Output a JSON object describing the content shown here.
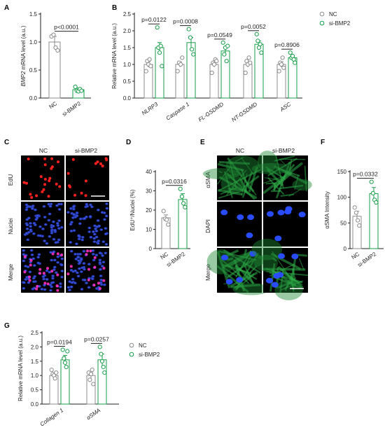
{
  "colors": {
    "nc": "#8c8c8c",
    "si": "#1a9e4a",
    "axis": "#222222"
  },
  "panels": {
    "A": "A",
    "B": "B",
    "C": "C",
    "D": "D",
    "E": "E",
    "F": "F",
    "G": "G"
  },
  "images": {
    "C": {
      "cols": [
        "NC",
        "si-BMP2"
      ],
      "rows": [
        "EdU",
        "Nuclei",
        "Merge"
      ]
    },
    "E": {
      "cols": [
        "NC",
        "si-BMP2"
      ],
      "rows": [
        "αSMA",
        "DAPI",
        "Merge"
      ]
    }
  },
  "chart_data": [
    {
      "id": "A",
      "type": "bar",
      "categories": [
        "NC",
        "si-BMP2"
      ],
      "values": [
        1.0,
        0.15
      ],
      "errors": [
        0.1,
        0.03
      ],
      "points": [
        [
          1.1,
          1.13,
          0.9,
          0.85
        ],
        [
          0.2,
          0.13,
          0.12,
          0.16,
          0.13
        ]
      ],
      "ylabel": "BMP2 mRNA level (a.u.)",
      "ylim": [
        0,
        1.5
      ],
      "yticks": [
        "0.0",
        "0.5",
        "1.0",
        "1.5"
      ],
      "pvalues": [
        "p<0.0001"
      ]
    },
    {
      "id": "B",
      "type": "bar",
      "categories": [
        "NLRP3",
        "Caspase 1",
        "FL-GSDMD",
        "NT-GSDMD",
        "ASC"
      ],
      "series": [
        {
          "name": "NC",
          "values": [
            1.0,
            1.0,
            1.0,
            1.0,
            1.0
          ],
          "errors": [
            0.08,
            0.08,
            0.08,
            0.08,
            0.08
          ],
          "points": [
            [
              0.8,
              1.1,
              1.0,
              1.15,
              0.95
            ],
            [
              0.8,
              1.05,
              1.0,
              1.2
            ],
            [
              0.75,
              1.05,
              1.0,
              1.15,
              1.1
            ],
            [
              0.75,
              1.1,
              1.0,
              1.2,
              1.05
            ],
            [
              0.8,
              1.05,
              1.0,
              1.2,
              0.9
            ]
          ]
        },
        {
          "name": "si-BMP2",
          "values": [
            1.5,
            1.65,
            1.4,
            1.6,
            1.2
          ],
          "errors": [
            0.15,
            0.15,
            0.12,
            0.1,
            0.06
          ],
          "points": [
            [
              2.1,
              1.5,
              1.35,
              1.55,
              0.95
            ],
            [
              2.05,
              1.8,
              1.45,
              1.3
            ],
            [
              1.65,
              1.3,
              1.5,
              1.1,
              1.55
            ],
            [
              1.9,
              1.7,
              1.5,
              1.6,
              1.35
            ],
            [
              1.35,
              1.2,
              1.25,
              1.15,
              1.05
            ]
          ]
        }
      ],
      "ylabel": "Relative mRNA level (a.u.)",
      "ylim": [
        0,
        2.5
      ],
      "yticks": [
        "0.0",
        "0.5",
        "1.0",
        "1.5",
        "2.0",
        "2.5"
      ],
      "pvalues": [
        "p=0.0122",
        "p=0.0008",
        "p=0.0549",
        "p=0.0052",
        "p=0.8906"
      ],
      "legend": [
        "NC",
        "si-BMP2"
      ]
    },
    {
      "id": "D",
      "type": "bar",
      "categories": [
        "NC",
        "si-BMP2"
      ],
      "values": [
        16,
        25.5
      ],
      "errors": [
        1.5,
        3
      ],
      "points": [
        [
          19.5,
          15.5,
          15,
          12.5
        ],
        [
          31,
          27,
          23.5,
          21.5
        ]
      ],
      "ylabel": "EdU⁺/Nuclei (%)",
      "ylim": [
        0,
        40
      ],
      "yticks": [
        "0",
        "10",
        "20",
        "30",
        "40"
      ],
      "pvalues": [
        "p=0.0316"
      ]
    },
    {
      "id": "F",
      "type": "bar",
      "categories": [
        "NC",
        "si-BMP2"
      ],
      "values": [
        63,
        107
      ],
      "errors": [
        10,
        12
      ],
      "points": [
        [
          80,
          70,
          55,
          45
        ],
        [
          130,
          108,
          95,
          90
        ]
      ],
      "ylabel": "αSMA Intensity",
      "ylim": [
        0,
        150
      ],
      "yticks": [
        "0",
        "50",
        "100",
        "150"
      ],
      "pvalues": [
        "p=0.0332"
      ]
    },
    {
      "id": "G",
      "type": "bar",
      "categories": [
        "Collagen 1",
        "αSMA"
      ],
      "series": [
        {
          "name": "NC",
          "values": [
            1.0,
            1.0
          ],
          "errors": [
            0.08,
            0.1
          ],
          "points": [
            [
              1.2,
              1.05,
              1.0,
              0.9,
              1.1
            ],
            [
              1.1,
              0.85,
              1.05,
              1.2,
              0.7
            ]
          ]
        },
        {
          "name": "si-BMP2",
          "values": [
            1.55,
            1.55
          ],
          "errors": [
            0.15,
            0.2
          ],
          "points": [
            [
              1.9,
              1.6,
              1.45,
              1.3,
              1.85
            ],
            [
              2.0,
              1.75,
              1.5,
              1.3,
              1.1
            ]
          ]
        }
      ],
      "ylabel": "Relative mRNA level (a.u.)",
      "ylim": [
        0,
        2.5
      ],
      "yticks": [
        "0.0",
        "0.5",
        "1.0",
        "1.5",
        "2.0",
        "2.5"
      ],
      "pvalues": [
        "p=0.0194",
        "p=0.0257"
      ],
      "legend": [
        "NC",
        "si-BMP2"
      ]
    }
  ]
}
